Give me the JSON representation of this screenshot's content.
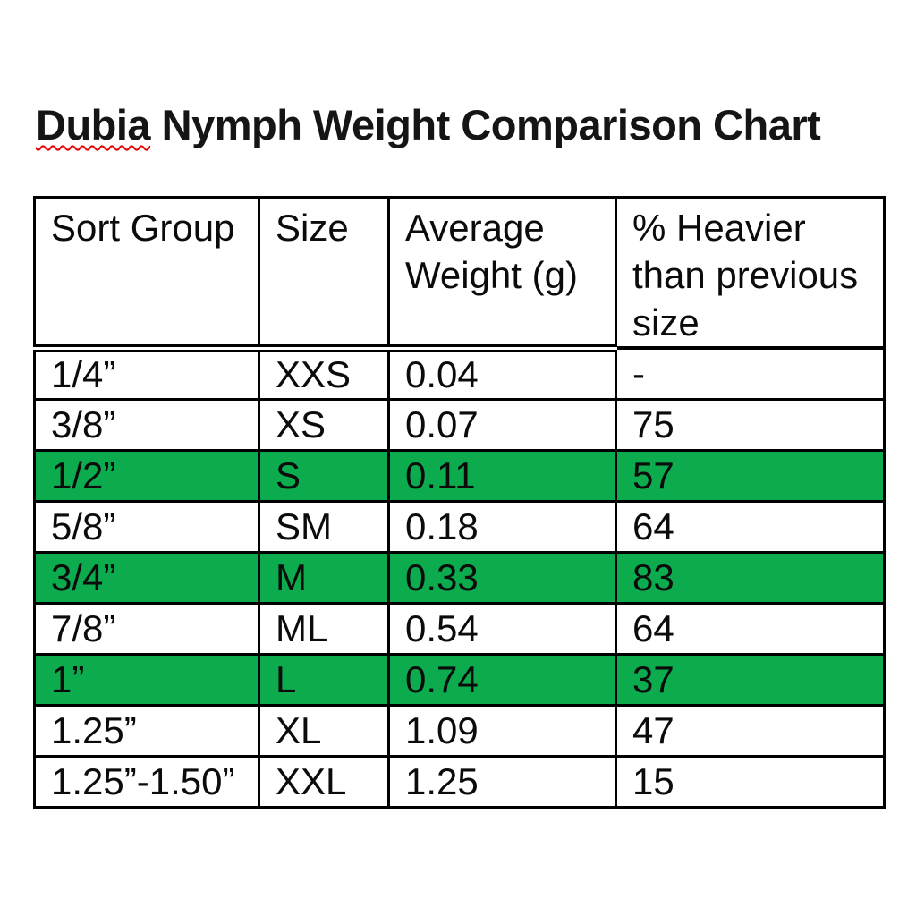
{
  "header": {
    "misspelled_word": "Dubia",
    "title_rest": " Nymph Weight Comparison Chart",
    "full_title": "Dubia Nymph Weight Comparison Chart"
  },
  "colors": {
    "highlight_green": "#0cab4e",
    "squiggle_red": "#e60000",
    "border_black": "#000000"
  },
  "table": {
    "columns": [
      "Sort Group",
      "Size",
      "Average Weight (g)",
      "% Heavier than previous size"
    ],
    "rows": [
      {
        "sort_group": "1/4”",
        "size": "XXS",
        "avg_weight": "0.04",
        "pct_heavier": "-",
        "highlight": false
      },
      {
        "sort_group": "3/8”",
        "size": "XS",
        "avg_weight": "0.07",
        "pct_heavier": "75",
        "highlight": false
      },
      {
        "sort_group": "1/2”",
        "size": "S",
        "avg_weight": "0.11",
        "pct_heavier": "57",
        "highlight": true
      },
      {
        "sort_group": "5/8”",
        "size": "SM",
        "avg_weight": "0.18",
        "pct_heavier": "64",
        "highlight": false
      },
      {
        "sort_group": "3/4”",
        "size": "M",
        "avg_weight": "0.33",
        "pct_heavier": "83",
        "highlight": true
      },
      {
        "sort_group": "7/8”",
        "size": "ML",
        "avg_weight": "0.54",
        "pct_heavier": "64",
        "highlight": false
      },
      {
        "sort_group": "1”",
        "size": "L",
        "avg_weight": "0.74",
        "pct_heavier": "37",
        "highlight": true
      },
      {
        "sort_group": "1.25”",
        "size": "XL",
        "avg_weight": "1.09",
        "pct_heavier": "47",
        "highlight": false
      },
      {
        "sort_group": "1.25”-1.50”",
        "size": "XXL",
        "avg_weight": "1.25",
        "pct_heavier": "15",
        "highlight": false
      }
    ]
  },
  "chart_data": {
    "type": "table",
    "title": "Dubia Nymph Weight Comparison Chart",
    "columns": [
      "Sort Group",
      "Size",
      "Average Weight (g)",
      "% Heavier than previous size"
    ],
    "sort_groups": [
      "1/4”",
      "3/8”",
      "1/2”",
      "5/8”",
      "3/4”",
      "7/8”",
      "1”",
      "1.25”",
      "1.25”-1.50”"
    ],
    "sizes": [
      "XXS",
      "XS",
      "S",
      "SM",
      "M",
      "ML",
      "L",
      "XL",
      "XXL"
    ],
    "average_weight_g": [
      0.04,
      0.07,
      0.11,
      0.18,
      0.33,
      0.54,
      0.74,
      1.09,
      1.25
    ],
    "pct_heavier_than_previous": [
      null,
      75,
      57,
      64,
      83,
      64,
      37,
      47,
      15
    ],
    "highlighted_row_indices": [
      2,
      4,
      6
    ]
  }
}
